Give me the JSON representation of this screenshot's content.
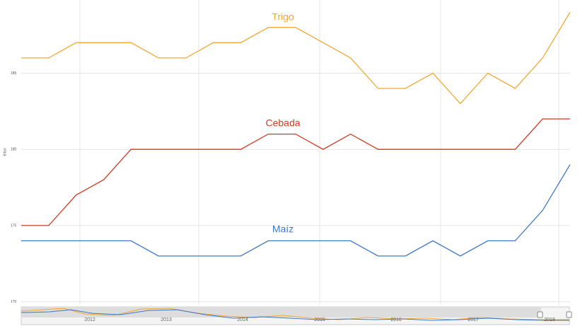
{
  "chart_data": {
    "type": "line",
    "y_label": "€/ton",
    "categories": [
      null,
      null,
      null,
      null,
      null,
      null,
      null,
      null,
      null,
      null,
      null,
      null,
      null,
      null,
      null,
      null,
      null,
      null,
      null,
      null,
      null
    ],
    "series": [
      {
        "name": "Trigo",
        "color": "#f0a830",
        "values": [
          186,
          186,
          187,
          187,
          187,
          186,
          186,
          187,
          187,
          188,
          188,
          187,
          186,
          184,
          184,
          185,
          183,
          185,
          184,
          186,
          189
        ]
      },
      {
        "name": "Cebada",
        "color": "#d03a22",
        "values": [
          175,
          175,
          177,
          178,
          180,
          180,
          180,
          180,
          180,
          181,
          181,
          180,
          181,
          180,
          180,
          180,
          180,
          180,
          180,
          182,
          182
        ]
      },
      {
        "name": "Maíz",
        "color": "#3d78c8",
        "values": [
          174,
          174,
          174,
          174,
          174,
          173,
          173,
          173,
          173,
          174,
          174,
          174,
          174,
          173,
          173,
          174,
          173,
          174,
          174,
          176,
          179
        ]
      }
    ],
    "ylim": [
      169.8,
      189.8
    ],
    "yticks": [
      170,
      175,
      180,
      185
    ],
    "grid": true,
    "navigator_labels": [
      "2012",
      "2013",
      "2014",
      "2015",
      "2016",
      "2017",
      "2018"
    ]
  }
}
